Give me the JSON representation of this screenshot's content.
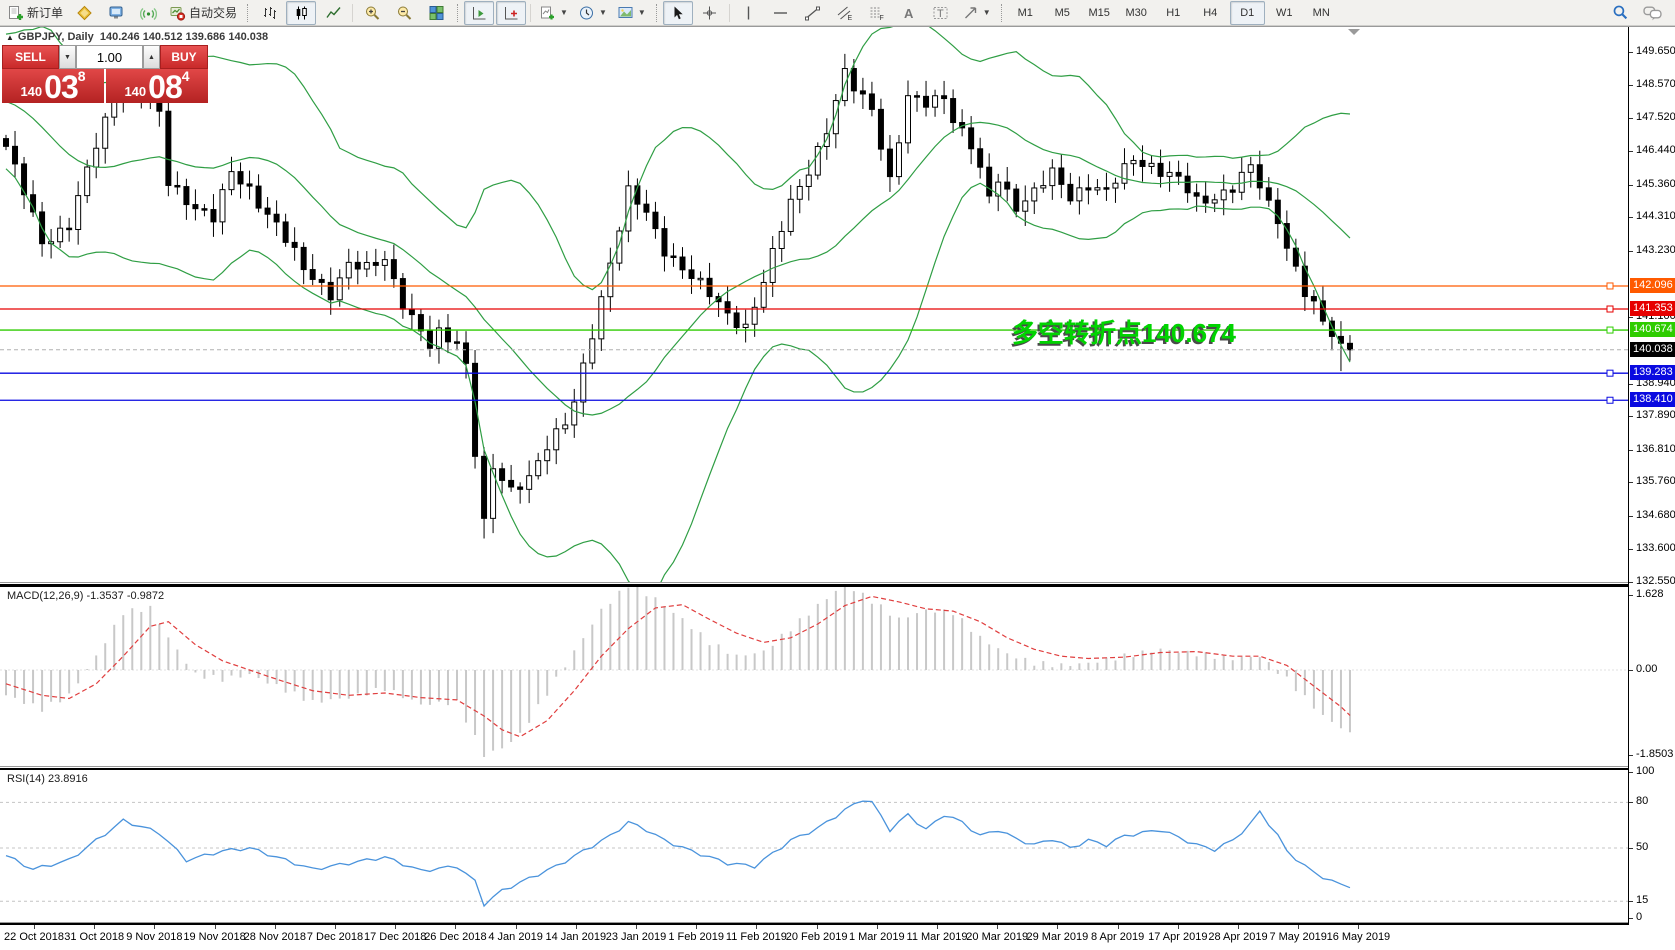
{
  "toolbar": {
    "new_order_label": "新订单",
    "autotrading_label": "自动交易",
    "periods": [
      "M1",
      "M5",
      "M15",
      "M30",
      "H1",
      "H4",
      "D1",
      "W1",
      "MN"
    ],
    "active_period": "D1"
  },
  "header": {
    "collapse_icon": "▲",
    "symbol_text": "GBPJPY, Daily",
    "ohlc": "140.246 140.512 139.686 140.038"
  },
  "one_click": {
    "sell": {
      "label": "SELL",
      "small": "140",
      "big": "03",
      "sup": "8"
    },
    "buy": {
      "label": "BUY",
      "small": "140",
      "big": "08",
      "sup": "4"
    },
    "volume": "1.00"
  },
  "annotation": {
    "text": "多空转折点140.674",
    "color": "#00d400"
  },
  "macd": {
    "label": "MACD(12,26,9) -1.3537 -0.9872",
    "value": -1.3537,
    "signal_value": -0.9872
  },
  "rsi": {
    "label": "RSI(14) 23.8916",
    "value": 23.8916
  },
  "axis": {
    "price_ticks": [
      "149.650",
      "148.570",
      "147.520",
      "146.440",
      "145.360",
      "144.310",
      "143.230",
      "141.100",
      "138.940",
      "137.890",
      "136.810",
      "135.760",
      "134.680",
      "133.600",
      "132.550"
    ],
    "macd_ticks": [
      {
        "label": "1.628",
        "value": 1.628
      },
      {
        "label": "0.00",
        "value": 0
      },
      {
        "label": "-1.8503",
        "value": -1.8503
      }
    ],
    "rsi_ticks": [
      {
        "label": "100",
        "value": 100,
        "line": false
      },
      {
        "label": "80",
        "value": 80,
        "line": true
      },
      {
        "label": "50",
        "value": 50,
        "line": true
      },
      {
        "label": "15",
        "value": 15,
        "line": true
      },
      {
        "label": "0",
        "value": 0,
        "line": false
      }
    ],
    "dates": [
      "22 Oct 2018",
      "31 Oct 2018",
      "9 Nov 2018",
      "19 Nov 2018",
      "28 Nov 2018",
      "7 Dec 2018",
      "17 Dec 2018",
      "26 Dec 2018",
      "4 Jan 2019",
      "14 Jan 2019",
      "23 Jan 2019",
      "1 Feb 2019",
      "11 Feb 2019",
      "20 Feb 2019",
      "1 Mar 2019",
      "11 Mar 2019",
      "20 Mar 2019",
      "29 Mar 2019",
      "8 Apr 2019",
      "17 Apr 2019",
      "28 Apr 2019",
      "7 May 2019",
      "16 May 2019"
    ]
  },
  "hlines": [
    {
      "price": 142.096,
      "label": "142.096",
      "color": "#ff5a00"
    },
    {
      "price": 141.353,
      "label": "141.353",
      "color": "#e60000"
    },
    {
      "price": 140.674,
      "label": "140.674",
      "color": "#2ecc00"
    },
    {
      "price": 139.283,
      "label": "139.283",
      "color": "#0a0ae0"
    },
    {
      "price": 138.41,
      "label": "138.410",
      "color": "#0a0ae0"
    }
  ],
  "current_price": {
    "price": 140.038,
    "label": "140.038",
    "line_color": "#b0b0b0",
    "label_bg": "#000000"
  },
  "chart_data": {
    "type": "candlestick",
    "symbol": "GBPJPY",
    "timeframe": "Daily",
    "bars": 150,
    "price_range": [
      132.55,
      150.45
    ],
    "last_candle": {
      "open": 140.246,
      "high": 140.512,
      "low": 139.686,
      "close": 140.038
    },
    "close_anchors": [
      [
        0,
        146.6
      ],
      [
        2,
        145.1
      ],
      [
        4,
        143.5
      ],
      [
        7,
        144.1
      ],
      [
        10,
        146.6
      ],
      [
        13,
        148.9
      ],
      [
        15,
        148.3
      ],
      [
        17,
        147.6
      ],
      [
        18,
        145.4
      ],
      [
        20,
        144.9
      ],
      [
        23,
        144.3
      ],
      [
        25,
        145.7
      ],
      [
        27,
        145.2
      ],
      [
        30,
        144.1
      ],
      [
        33,
        142.6
      ],
      [
        36,
        141.9
      ],
      [
        38,
        142.8
      ],
      [
        40,
        142.6
      ],
      [
        42,
        143.0
      ],
      [
        44,
        141.6
      ],
      [
        47,
        140.1
      ],
      [
        48,
        140.5
      ],
      [
        50,
        140.3
      ],
      [
        51,
        139.6
      ],
      [
        52,
        136.6
      ],
      [
        53,
        134.6
      ],
      [
        54,
        136.2
      ],
      [
        56,
        135.4
      ],
      [
        58,
        136.0
      ],
      [
        60,
        137.0
      ],
      [
        62,
        137.6
      ],
      [
        63,
        138.3
      ],
      [
        65,
        140.6
      ],
      [
        67,
        142.9
      ],
      [
        69,
        145.1
      ],
      [
        71,
        144.4
      ],
      [
        73,
        143.3
      ],
      [
        76,
        142.4
      ],
      [
        78,
        141.8
      ],
      [
        80,
        141.2
      ],
      [
        82,
        140.8
      ],
      [
        84,
        142.2
      ],
      [
        87,
        144.8
      ],
      [
        89,
        145.9
      ],
      [
        91,
        147.1
      ],
      [
        93,
        148.9
      ],
      [
        94,
        148.5
      ],
      [
        96,
        147.9
      ],
      [
        98,
        145.5
      ],
      [
        100,
        148.1
      ],
      [
        102,
        148.0
      ],
      [
        104,
        148.3
      ],
      [
        105,
        147.5
      ],
      [
        107,
        146.6
      ],
      [
        109,
        144.9
      ],
      [
        110,
        145.6
      ],
      [
        112,
        144.7
      ],
      [
        114,
        145.1
      ],
      [
        116,
        145.7
      ],
      [
        118,
        145.0
      ],
      [
        120,
        145.4
      ],
      [
        122,
        145.1
      ],
      [
        125,
        146.2
      ],
      [
        127,
        146.0
      ],
      [
        130,
        145.5
      ],
      [
        132,
        144.8
      ],
      [
        134,
        145.0
      ],
      [
        136,
        145.3
      ],
      [
        138,
        145.9
      ],
      [
        140,
        144.7
      ],
      [
        141,
        144.3
      ],
      [
        142,
        143.4
      ],
      [
        143,
        142.7
      ],
      [
        144,
        141.9
      ],
      [
        145,
        141.4
      ],
      [
        146,
        140.9
      ],
      [
        147,
        140.5
      ],
      [
        148,
        140.25
      ],
      [
        149,
        140.038
      ]
    ],
    "pre_anchors": [
      [
        -20,
        148.3
      ],
      [
        -14,
        149.9
      ],
      [
        -8,
        147.2
      ],
      [
        -1,
        146.9
      ]
    ],
    "special_lows": [
      [
        53,
        133.95
      ],
      [
        148,
        139.35
      ]
    ],
    "bollinger": {
      "period": 20,
      "deviation": 2,
      "color": "#2f9e44"
    },
    "macd_anchors": [
      [
        0,
        -0.55,
        -0.3
      ],
      [
        4,
        -0.85,
        -0.55
      ],
      [
        7,
        -0.55,
        -0.62
      ],
      [
        10,
        0.3,
        -0.3
      ],
      [
        13,
        1.25,
        0.3
      ],
      [
        16,
        1.35,
        0.95
      ],
      [
        18,
        0.7,
        1.05
      ],
      [
        21,
        -0.1,
        0.55
      ],
      [
        24,
        -0.2,
        0.2
      ],
      [
        27,
        -0.1,
        0.0
      ],
      [
        30,
        -0.35,
        -0.2
      ],
      [
        34,
        -0.7,
        -0.45
      ],
      [
        38,
        -0.6,
        -0.55
      ],
      [
        42,
        -0.4,
        -0.5
      ],
      [
        46,
        -0.75,
        -0.6
      ],
      [
        50,
        -0.7,
        -0.65
      ],
      [
        53,
        -1.8503,
        -1.0
      ],
      [
        55,
        -1.7,
        -1.3
      ],
      [
        57,
        -1.4,
        -1.45
      ],
      [
        60,
        -0.5,
        -1.1
      ],
      [
        63,
        0.4,
        -0.45
      ],
      [
        66,
        1.3,
        0.3
      ],
      [
        69,
        1.85,
        0.9
      ],
      [
        72,
        1.55,
        1.35
      ],
      [
        75,
        1.1,
        1.42
      ],
      [
        78,
        0.6,
        1.1
      ],
      [
        81,
        0.3,
        0.8
      ],
      [
        84,
        0.4,
        0.6
      ],
      [
        87,
        0.9,
        0.7
      ],
      [
        90,
        1.4,
        1.0
      ],
      [
        93,
        1.88,
        1.4
      ],
      [
        96,
        1.5,
        1.6
      ],
      [
        99,
        1.1,
        1.48
      ],
      [
        102,
        1.3,
        1.33
      ],
      [
        105,
        1.25,
        1.28
      ],
      [
        108,
        0.7,
        1.05
      ],
      [
        111,
        0.35,
        0.7
      ],
      [
        114,
        0.15,
        0.45
      ],
      [
        117,
        0.1,
        0.3
      ],
      [
        120,
        0.15,
        0.25
      ],
      [
        124,
        0.3,
        0.28
      ],
      [
        128,
        0.45,
        0.38
      ],
      [
        132,
        0.35,
        0.4
      ],
      [
        136,
        0.25,
        0.3
      ],
      [
        139,
        0.3,
        0.3
      ],
      [
        142,
        -0.2,
        0.1
      ],
      [
        144,
        -0.6,
        -0.2
      ],
      [
        146,
        -1.0,
        -0.5
      ],
      [
        148,
        -1.25,
        -0.8
      ],
      [
        149,
        -1.3537,
        -0.9872
      ]
    ],
    "rsi_anchors": [
      [
        0,
        45
      ],
      [
        3,
        36
      ],
      [
        7,
        42
      ],
      [
        13,
        68
      ],
      [
        17,
        60
      ],
      [
        20,
        42
      ],
      [
        24,
        48
      ],
      [
        27,
        50
      ],
      [
        31,
        42
      ],
      [
        34,
        36
      ],
      [
        38,
        40
      ],
      [
        42,
        44
      ],
      [
        46,
        35
      ],
      [
        50,
        38
      ],
      [
        52,
        28
      ],
      [
        53,
        13
      ],
      [
        55,
        22
      ],
      [
        58,
        30
      ],
      [
        61,
        38
      ],
      [
        64,
        48
      ],
      [
        67,
        58
      ],
      [
        69,
        67
      ],
      [
        71,
        62
      ],
      [
        73,
        55
      ],
      [
        76,
        48
      ],
      [
        80,
        40
      ],
      [
        83,
        38
      ],
      [
        87,
        55
      ],
      [
        90,
        63
      ],
      [
        93,
        75
      ],
      [
        95,
        82
      ],
      [
        96,
        80
      ],
      [
        98,
        62
      ],
      [
        100,
        72
      ],
      [
        102,
        62
      ],
      [
        104,
        72
      ],
      [
        106,
        67
      ],
      [
        108,
        58
      ],
      [
        110,
        62
      ],
      [
        112,
        56
      ],
      [
        114,
        52
      ],
      [
        116,
        56
      ],
      [
        118,
        50
      ],
      [
        120,
        55
      ],
      [
        122,
        52
      ],
      [
        124,
        58
      ],
      [
        126,
        60
      ],
      [
        128,
        62
      ],
      [
        130,
        57
      ],
      [
        132,
        52
      ],
      [
        134,
        49
      ],
      [
        136,
        55
      ],
      [
        138,
        66
      ],
      [
        139,
        74
      ],
      [
        140,
        66
      ],
      [
        141,
        58
      ],
      [
        142,
        48
      ],
      [
        143,
        43
      ],
      [
        144,
        38
      ],
      [
        145,
        34
      ],
      [
        146,
        31
      ],
      [
        147,
        28
      ],
      [
        148,
        26
      ],
      [
        149,
        23.8916
      ]
    ],
    "colors": {
      "candle_up": "#ffffff",
      "candle_down": "#000000",
      "wick": "#000000",
      "macd_hist": "#c8c8c8",
      "macd_signal": "#e03e3e",
      "rsi_line": "#4a93dc"
    }
  }
}
